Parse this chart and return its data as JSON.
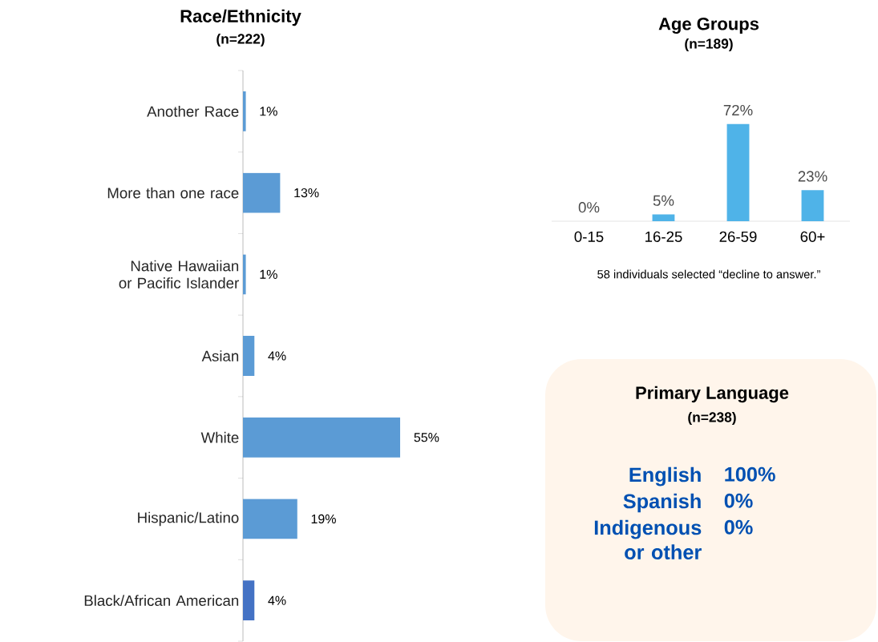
{
  "chart_data": [
    {
      "type": "bar",
      "orientation": "horizontal",
      "title": "Race/Ethnicity",
      "subtitle": "(n=222)",
      "categories": [
        "Another Race",
        "More than one race",
        "Native Hawaiian or Pacific Islander",
        "Asian",
        "White",
        "Hispanic/Latino",
        "Black/African American"
      ],
      "values": [
        1,
        13,
        1,
        4,
        55,
        19,
        4
      ],
      "value_labels": [
        "1%",
        "13%",
        "1%",
        "4%",
        "55%",
        "19%",
        "4%"
      ],
      "colors": [
        "#5b9bd5",
        "#5b9bd5",
        "#5b9bd5",
        "#5b9bd5",
        "#5b9bd5",
        "#5b9bd5",
        "#4472c4"
      ]
    },
    {
      "type": "bar",
      "title": "Age Groups",
      "subtitle": "(n=189)",
      "categories": [
        "0-15",
        "16-25",
        "26-59",
        "60+"
      ],
      "values": [
        0,
        5,
        72,
        23
      ],
      "value_labels": [
        "0%",
        "5%",
        "72%",
        "23%"
      ],
      "color": "#4fb3e8",
      "annotations": [
        "58 individuals selected “decline to answer.”"
      ]
    },
    {
      "type": "other",
      "title": "Primary Language",
      "subtitle": "(n=238)",
      "categories": [
        "English",
        "Spanish",
        "Indigenous or other"
      ],
      "values": [
        100,
        0,
        0
      ],
      "value_labels": [
        "100%",
        "0%",
        "0%"
      ]
    }
  ]
}
